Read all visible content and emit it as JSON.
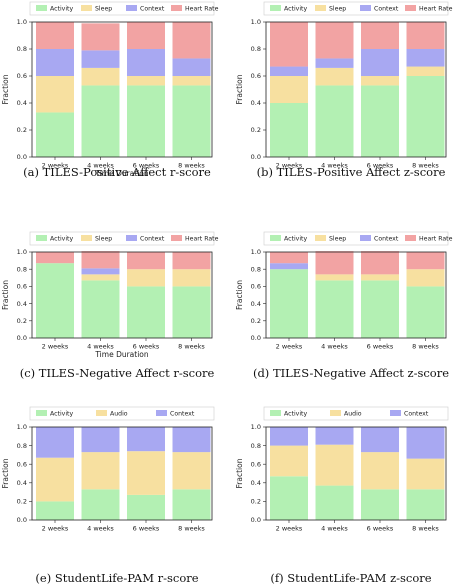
{
  "colors": {
    "Activity": "#b3f0b3",
    "Sleep": "#f7e0a0",
    "Audio": "#f7e0a0",
    "Context": "#a8a8f2",
    "Heart Rate": "#f2a3a3"
  },
  "chart_data": [
    {
      "type": "bar",
      "stacked": true,
      "caption": "(a) TILES-Positive Affect r-score",
      "categories": [
        "2 weeks",
        "4 weeks",
        "6 weeks",
        "8 weeks"
      ],
      "xlabel": "Time Duration",
      "ylabel": "Fraction",
      "ylim": [
        0,
        1.0
      ],
      "yticks": [
        "0.0",
        "0.2",
        "0.4",
        "0.6",
        "0.8",
        "1.0"
      ],
      "legend_position": "top",
      "series": [
        {
          "name": "Activity",
          "values": [
            0.33,
            0.53,
            0.53,
            0.53
          ]
        },
        {
          "name": "Sleep",
          "values": [
            0.27,
            0.13,
            0.07,
            0.07
          ]
        },
        {
          "name": "Context",
          "values": [
            0.2,
            0.13,
            0.2,
            0.13
          ]
        },
        {
          "name": "Heart Rate",
          "values": [
            0.2,
            0.2,
            0.2,
            0.27
          ]
        }
      ]
    },
    {
      "type": "bar",
      "stacked": true,
      "caption": "(b) TILES-Positive Affect z-score",
      "categories": [
        "2 weeks",
        "4 weeks",
        "6 weeks",
        "8 weeks"
      ],
      "xlabel": "",
      "ylabel": "Fraction",
      "ylim": [
        0,
        1.0
      ],
      "yticks": [
        "0.0",
        "0.2",
        "0.4",
        "0.6",
        "0.8",
        "1.0"
      ],
      "legend_position": "top",
      "series": [
        {
          "name": "Activity",
          "values": [
            0.4,
            0.53,
            0.53,
            0.6
          ]
        },
        {
          "name": "Sleep",
          "values": [
            0.2,
            0.13,
            0.07,
            0.07
          ]
        },
        {
          "name": "Context",
          "values": [
            0.07,
            0.07,
            0.2,
            0.13
          ]
        },
        {
          "name": "Heart Rate",
          "values": [
            0.33,
            0.27,
            0.2,
            0.2
          ]
        }
      ]
    },
    {
      "type": "bar",
      "stacked": true,
      "caption": "(c) TILES-Negative Affect r-score",
      "categories": [
        "2 weeks",
        "4 weeks",
        "6 weeks",
        "8 weeks"
      ],
      "xlabel": "Time Duration",
      "ylabel": "Fraction",
      "ylim": [
        0,
        1.0
      ],
      "yticks": [
        "0.0",
        "0.2",
        "0.4",
        "0.6",
        "0.8",
        "1.0"
      ],
      "legend_position": "top",
      "series": [
        {
          "name": "Activity",
          "values": [
            0.87,
            0.67,
            0.6,
            0.6
          ]
        },
        {
          "name": "Sleep",
          "values": [
            0.0,
            0.07,
            0.2,
            0.2
          ]
        },
        {
          "name": "Context",
          "values": [
            0.0,
            0.07,
            0.0,
            0.0
          ]
        },
        {
          "name": "Heart Rate",
          "values": [
            0.13,
            0.2,
            0.2,
            0.2
          ]
        }
      ]
    },
    {
      "type": "bar",
      "stacked": true,
      "caption": "(d) TILES-Negative Affect z-score",
      "categories": [
        "2 weeks",
        "4 weeks",
        "6 weeks",
        "8 weeks"
      ],
      "xlabel": "",
      "ylabel": "Fraction",
      "ylim": [
        0,
        1.0
      ],
      "yticks": [
        "0.0",
        "0.2",
        "0.4",
        "0.6",
        "0.8",
        "1.0"
      ],
      "legend_position": "top",
      "series": [
        {
          "name": "Activity",
          "values": [
            0.8,
            0.67,
            0.67,
            0.6
          ]
        },
        {
          "name": "Sleep",
          "values": [
            0.0,
            0.07,
            0.07,
            0.2
          ]
        },
        {
          "name": "Context",
          "values": [
            0.07,
            0.0,
            0.0,
            0.0
          ]
        },
        {
          "name": "Heart Rate",
          "values": [
            0.13,
            0.27,
            0.27,
            0.2
          ]
        }
      ]
    },
    {
      "type": "bar",
      "stacked": true,
      "caption": "(e) StudentLife-PAM r-score",
      "categories": [
        "2 weeks",
        "4 weeks",
        "6 weeks",
        "8 weeks"
      ],
      "xlabel": "",
      "ylabel": "Fraction",
      "ylim": [
        0,
        1.0
      ],
      "yticks": [
        "0.0",
        "0.2",
        "0.4",
        "0.6",
        "0.8",
        "1.0"
      ],
      "legend_position": "top",
      "series": [
        {
          "name": "Activity",
          "values": [
            0.2,
            0.33,
            0.27,
            0.33
          ]
        },
        {
          "name": "Audio",
          "values": [
            0.47,
            0.4,
            0.47,
            0.4
          ]
        },
        {
          "name": "Context",
          "values": [
            0.33,
            0.27,
            0.26,
            0.27
          ]
        }
      ]
    },
    {
      "type": "bar",
      "stacked": true,
      "caption": "(f) StudentLife-PAM z-score",
      "categories": [
        "2 weeks",
        "4 weeks",
        "6 weeks",
        "8 weeks"
      ],
      "xlabel": "",
      "ylabel": "Fraction",
      "ylim": [
        0,
        1.0
      ],
      "yticks": [
        "0.0",
        "0.2",
        "0.4",
        "0.6",
        "0.8",
        "1.0"
      ],
      "legend_position": "top",
      "series": [
        {
          "name": "Activity",
          "values": [
            0.47,
            0.37,
            0.33,
            0.33
          ]
        },
        {
          "name": "Audio",
          "values": [
            0.33,
            0.44,
            0.4,
            0.33
          ]
        },
        {
          "name": "Context",
          "values": [
            0.2,
            0.19,
            0.27,
            0.34
          ]
        }
      ]
    }
  ]
}
